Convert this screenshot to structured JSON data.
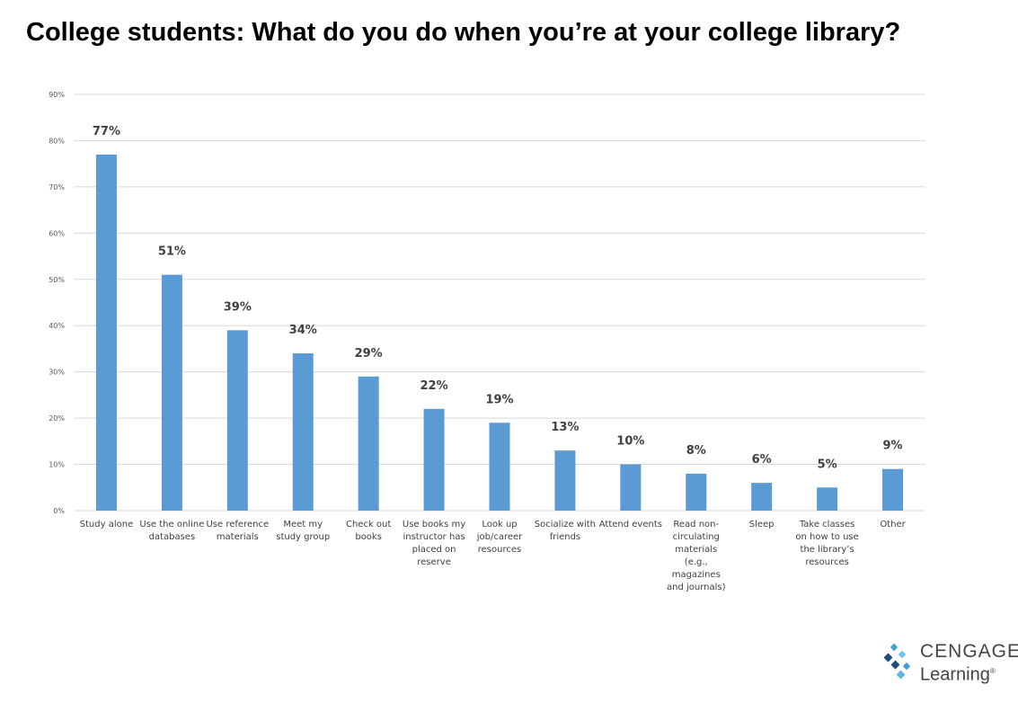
{
  "title": "College students: What do you do when you’re at your college library?",
  "logo": {
    "line1": "CENGAGE",
    "line2": "Learning",
    "mark": "®"
  },
  "colors": {
    "bar": "#5B9BD5",
    "grid": "#D9D9D9"
  },
  "chart_data": {
    "type": "bar",
    "title": "College students: What do you do when you’re at your college library?",
    "categories": [
      "Study alone",
      "Use the online databases",
      "Use reference materials",
      "Meet my study group",
      "Check out books",
      "Use books my instructor has placed on reserve",
      "Look up job/career resources",
      "Socialize with friends",
      "Attend events",
      "Read non-circulating materials (e.g., magazines and journals)",
      "Sleep",
      "Take classes on how to use the library’s resources",
      "Other"
    ],
    "values": [
      77,
      51,
      39,
      34,
      29,
      22,
      19,
      13,
      10,
      8,
      6,
      5,
      9
    ],
    "data_labels": [
      "77%",
      "51%",
      "39%",
      "34%",
      "29%",
      "22%",
      "19%",
      "13%",
      "10%",
      "8%",
      "6%",
      "5%",
      "9%"
    ],
    "yticks": [
      "0%",
      "10%",
      "20%",
      "30%",
      "40%",
      "50%",
      "60%",
      "70%",
      "80%",
      "90%"
    ],
    "ylim": [
      0,
      90
    ],
    "grid": true,
    "legend": "none"
  }
}
